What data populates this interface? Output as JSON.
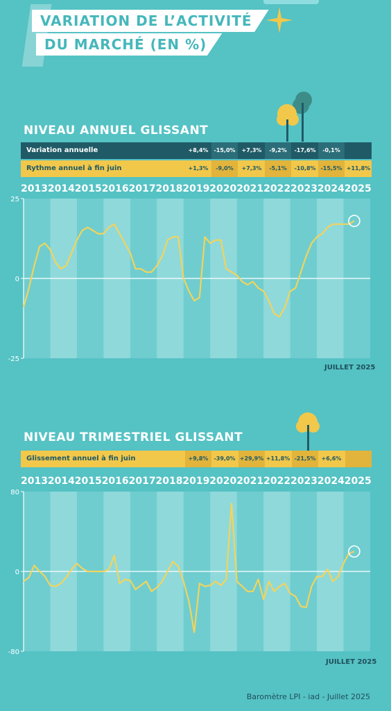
{
  "title": {
    "line1": "VARIATION DE L’ACTIVITÉ",
    "line2": "DU MARCHÉ (EN %)"
  },
  "colors": {
    "background": "#55c2c4",
    "line": "#f2d45c",
    "dark": "#1f5a66",
    "yellow": "#f2c84b",
    "band": "#8fd9db"
  },
  "years": [
    "2013",
    "2014",
    "2015",
    "2016",
    "2017",
    "2018",
    "2019",
    "2020",
    "2021",
    "2022",
    "2023",
    "2024",
    "2025"
  ],
  "annual": {
    "section_title": "NIVEAU ANNUEL GLISSANT",
    "row1_label": "Variation annuelle",
    "row1_values": [
      "+8,4%",
      "-15,0%",
      "+7,3%",
      "-9,2%",
      "-17,6%",
      "-0,1%",
      ""
    ],
    "row2_label": "Rythme annuel à fin juin",
    "row2_values": [
      "+1,3%",
      "-9,0%",
      "+7,3%",
      "-5,1%",
      "-10,8%",
      "-15,5%",
      "+11,8%"
    ],
    "note": "JUILLET 2025"
  },
  "quarterly": {
    "section_title": "NIVEAU TRIMESTRIEL GLISSANT",
    "row_label": "Glissement annuel à fin juin",
    "row_values": [
      "+9,8%",
      "-39,0%",
      "+29,9%",
      "+11,8%",
      "-21,5%",
      "+6,6%",
      ""
    ],
    "note": "JUILLET 2025"
  },
  "credit": "Baromètre LPI - iad - Juillet  2025",
  "chart_data": [
    {
      "type": "line",
      "ylim": [
        -25,
        25
      ],
      "yticks": [
        "25",
        "0",
        "-25"
      ],
      "x": [
        2013.0,
        2013.2,
        2013.4,
        2013.6,
        2013.8,
        2014.0,
        2014.2,
        2014.4,
        2014.6,
        2014.8,
        2015.0,
        2015.2,
        2015.4,
        2015.6,
        2015.8,
        2016.0,
        2016.2,
        2016.4,
        2016.6,
        2016.8,
        2017.0,
        2017.2,
        2017.4,
        2017.6,
        2017.8,
        2018.0,
        2018.2,
        2018.4,
        2018.6,
        2018.8,
        2019.0,
        2019.2,
        2019.4,
        2019.6,
        2019.8,
        2020.0,
        2020.2,
        2020.4,
        2020.6,
        2020.8,
        2021.0,
        2021.2,
        2021.4,
        2021.6,
        2021.8,
        2022.0,
        2022.2,
        2022.4,
        2022.6,
        2022.8,
        2023.0,
        2023.2,
        2023.4,
        2023.6,
        2023.8,
        2024.0,
        2024.2,
        2024.4,
        2024.6,
        2024.8,
        2025.0,
        2025.2,
        2025.4
      ],
      "y": [
        -9,
        -3,
        4,
        10,
        11,
        9,
        5,
        3,
        4,
        8,
        12,
        15,
        16,
        15,
        14,
        14,
        16,
        17,
        14,
        11,
        8,
        3,
        3,
        2,
        2,
        4,
        7,
        12,
        13,
        13,
        0,
        -4,
        -7,
        -6,
        13,
        11,
        12,
        12,
        3,
        2,
        1,
        -1,
        -2,
        -1,
        -3,
        -4,
        -7,
        -11,
        -12,
        -9,
        -4,
        -3,
        2,
        7,
        11,
        13,
        14,
        16,
        17,
        17,
        17,
        17,
        18
      ]
    },
    {
      "type": "line",
      "ylim": [
        -80,
        80
      ],
      "yticks": [
        "80",
        "0",
        "-80"
      ],
      "x": [
        2013.0,
        2013.2,
        2013.4,
        2013.6,
        2013.8,
        2014.0,
        2014.2,
        2014.4,
        2014.6,
        2014.8,
        2015.0,
        2015.2,
        2015.4,
        2015.6,
        2015.8,
        2016.0,
        2016.2,
        2016.4,
        2016.6,
        2016.8,
        2017.0,
        2017.2,
        2017.4,
        2017.6,
        2017.8,
        2018.0,
        2018.2,
        2018.4,
        2018.6,
        2018.8,
        2019.0,
        2019.2,
        2019.4,
        2019.6,
        2019.8,
        2020.0,
        2020.2,
        2020.4,
        2020.6,
        2020.8,
        2021.0,
        2021.2,
        2021.4,
        2021.6,
        2021.8,
        2022.0,
        2022.2,
        2022.4,
        2022.6,
        2022.8,
        2023.0,
        2023.2,
        2023.4,
        2023.6,
        2023.8,
        2024.0,
        2024.2,
        2024.4,
        2024.6,
        2024.8,
        2025.0,
        2025.2,
        2025.4
      ],
      "y": [
        -10,
        -6,
        6,
        0,
        -5,
        -14,
        -15,
        -12,
        -6,
        2,
        8,
        3,
        0,
        0,
        0,
        0,
        2,
        16,
        -12,
        -8,
        -9,
        -18,
        -14,
        -10,
        -20,
        -16,
        -10,
        0,
        10,
        5,
        -10,
        -30,
        -61,
        -12,
        -15,
        -14,
        -10,
        -14,
        -8,
        68,
        -10,
        -15,
        -20,
        -20,
        -8,
        -28,
        -10,
        -20,
        -15,
        -12,
        -22,
        -25,
        -35,
        -36,
        -15,
        -5,
        -5,
        2,
        -10,
        -5,
        8,
        18,
        20
      ]
    }
  ]
}
